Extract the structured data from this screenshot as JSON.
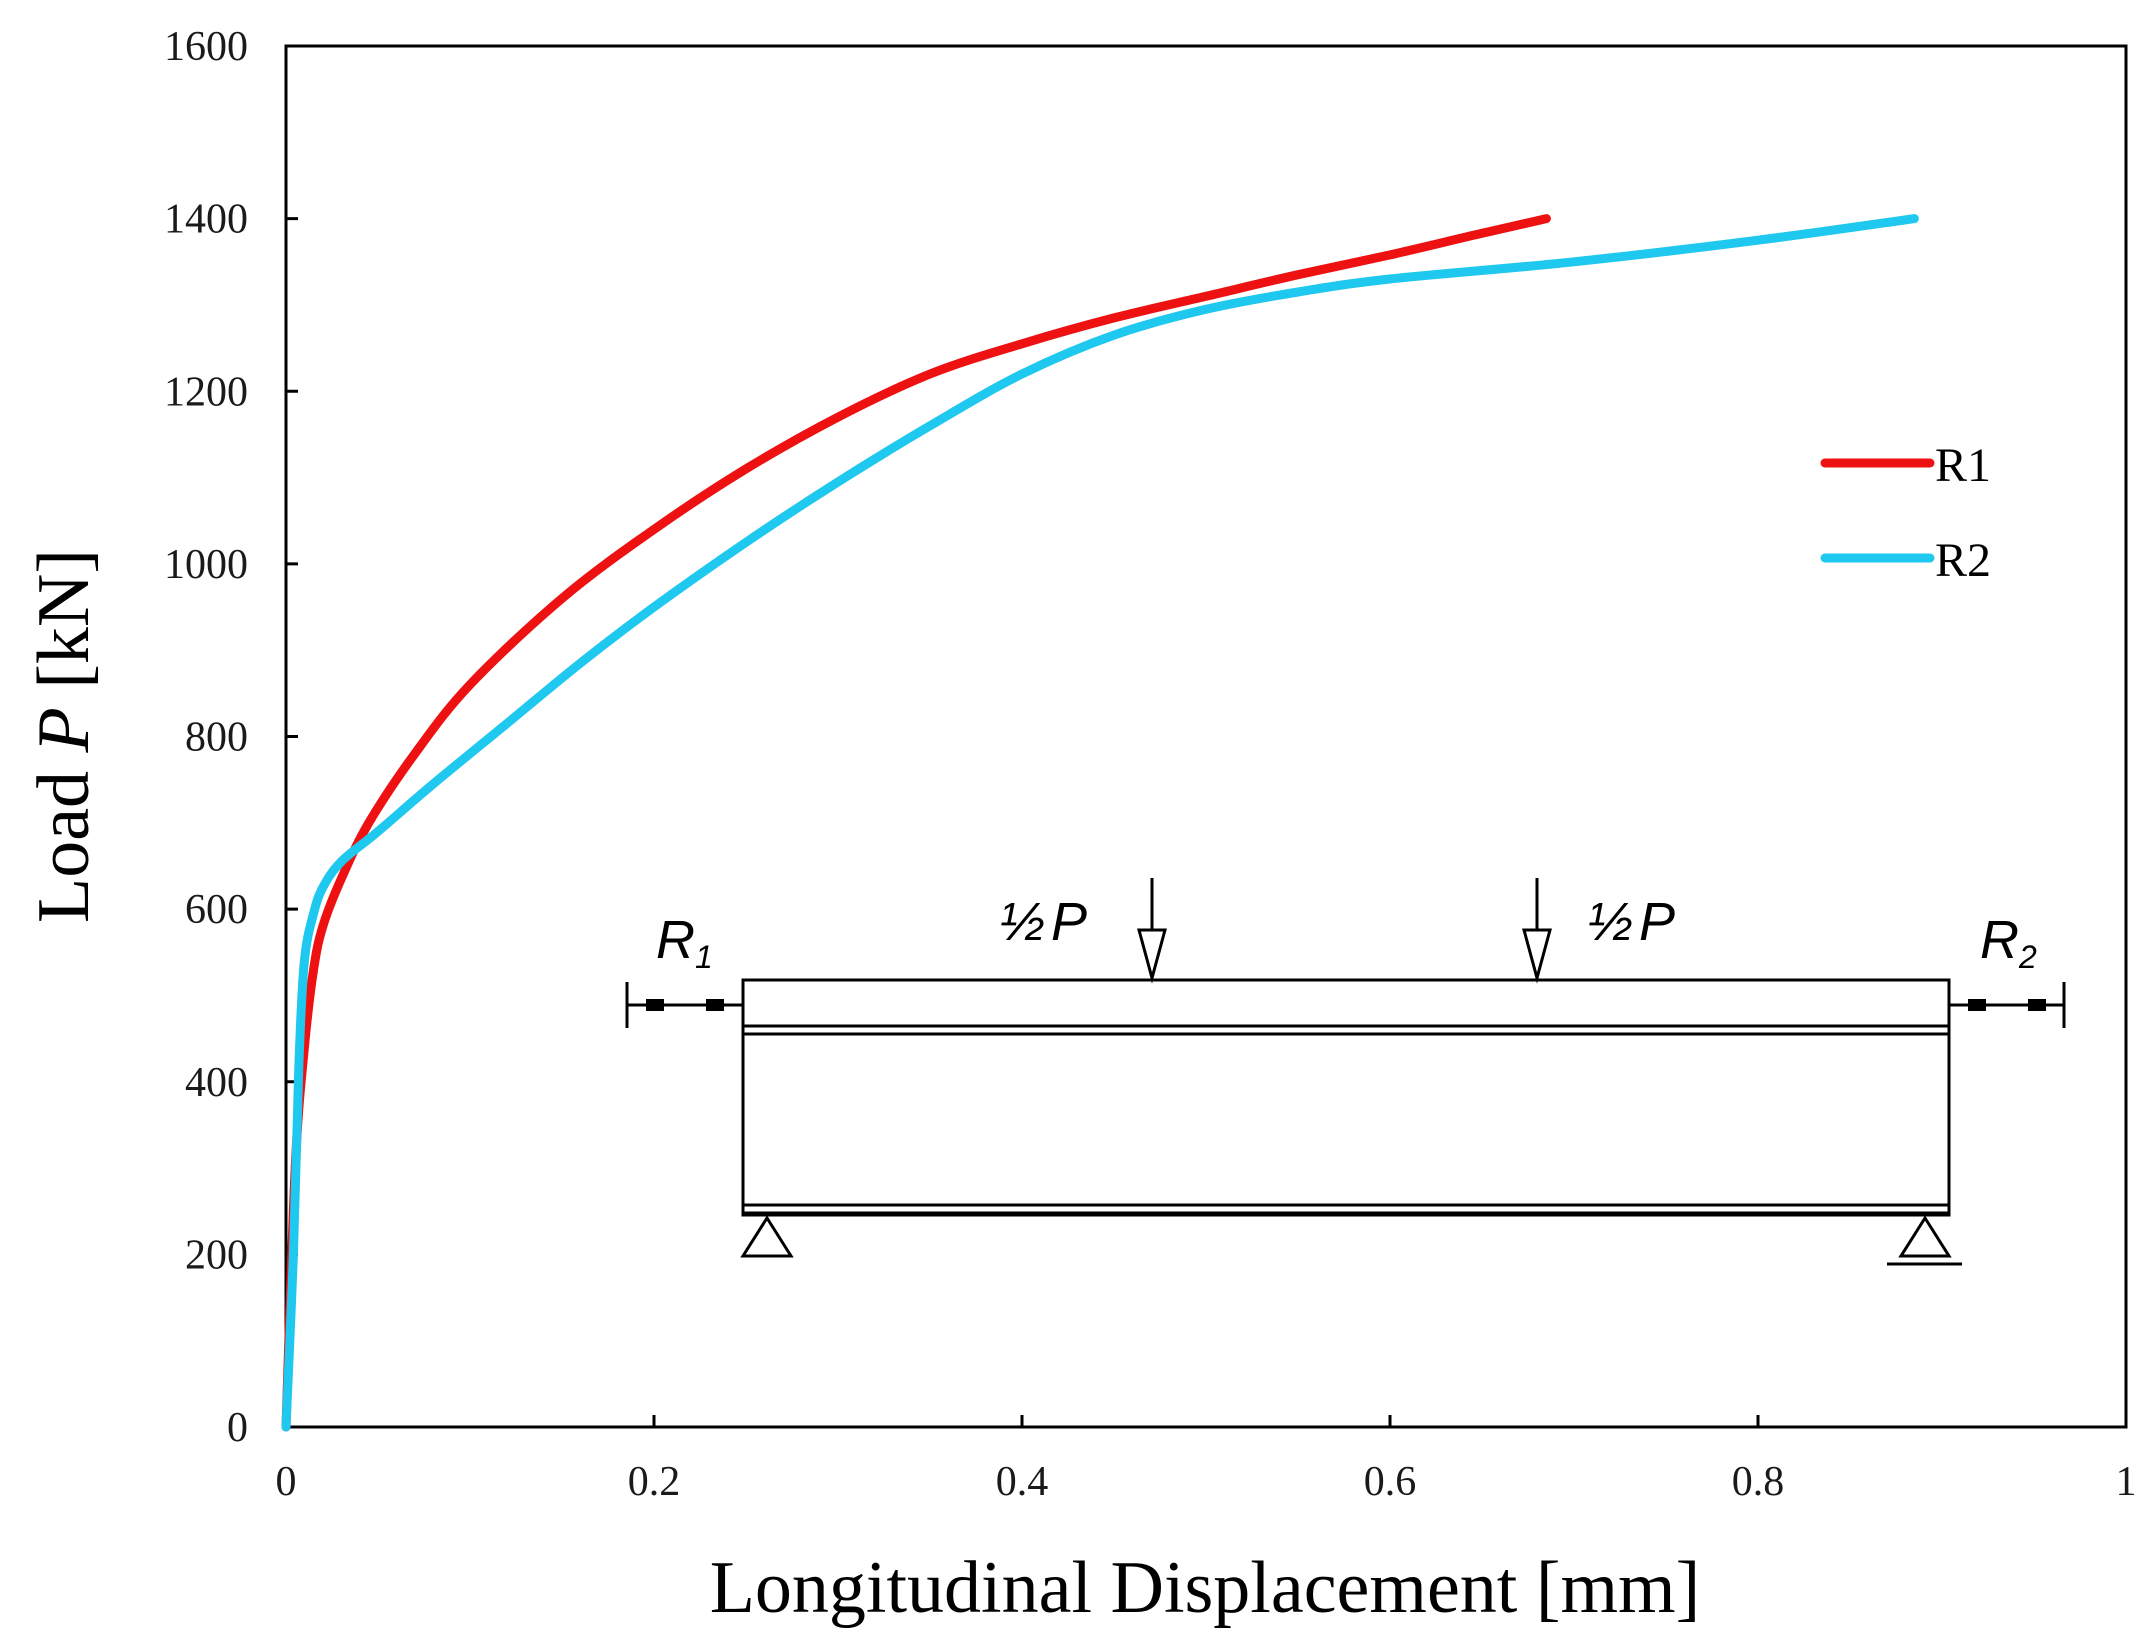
{
  "chart_data": {
    "type": "line",
    "xlabel": "Longitudinal  Displacement  [mm]",
    "ylabel_prefix": "Load ",
    "ylabel_var": "P",
    "ylabel_suffix": " [kN]",
    "xlim": [
      0,
      1
    ],
    "ylim": [
      0,
      1600
    ],
    "x_ticks": [
      0,
      0.2,
      0.4,
      0.6,
      0.8,
      1
    ],
    "x_tick_labels": [
      "0",
      "0.2",
      "0.4",
      "0.6",
      "0.8",
      "1"
    ],
    "y_ticks": [
      0,
      200,
      400,
      600,
      800,
      1000,
      1200,
      1400,
      1600
    ],
    "y_tick_labels": [
      "0",
      "200",
      "400",
      "600",
      "800",
      "1000",
      "1200",
      "1400",
      "1600"
    ],
    "grid": false,
    "legend_position": "right",
    "series": [
      {
        "name": "R1",
        "color": "#ee1111",
        "x": [
          0,
          0.005,
          0.01,
          0.015,
          0.02,
          0.03,
          0.045,
          0.07,
          0.1,
          0.15,
          0.2,
          0.25,
          0.3,
          0.35,
          0.4,
          0.45,
          0.5,
          0.55,
          0.6,
          0.65,
          0.685
        ],
        "y": [
          0,
          300,
          440,
          530,
          580,
          635,
          700,
          780,
          860,
          960,
          1040,
          1110,
          1170,
          1220,
          1255,
          1285,
          1310,
          1335,
          1358,
          1383,
          1400
        ]
      },
      {
        "name": "R2",
        "color": "#1ec8ee",
        "x": [
          0,
          0.004,
          0.007,
          0.01,
          0.015,
          0.02,
          0.03,
          0.05,
          0.08,
          0.12,
          0.16,
          0.2,
          0.25,
          0.3,
          0.35,
          0.4,
          0.45,
          0.5,
          0.55,
          0.6,
          0.7,
          0.8,
          0.885
        ],
        "y": [
          0,
          200,
          420,
          540,
          595,
          625,
          655,
          690,
          745,
          815,
          885,
          950,
          1025,
          1095,
          1160,
          1220,
          1265,
          1295,
          1315,
          1330,
          1350,
          1375,
          1400
        ]
      }
    ],
    "inset": {
      "load_half": "½",
      "load_var": "P",
      "reaction_left": "R",
      "reaction_left_sub": "1",
      "reaction_right": "R",
      "reaction_right_sub": "2"
    }
  }
}
